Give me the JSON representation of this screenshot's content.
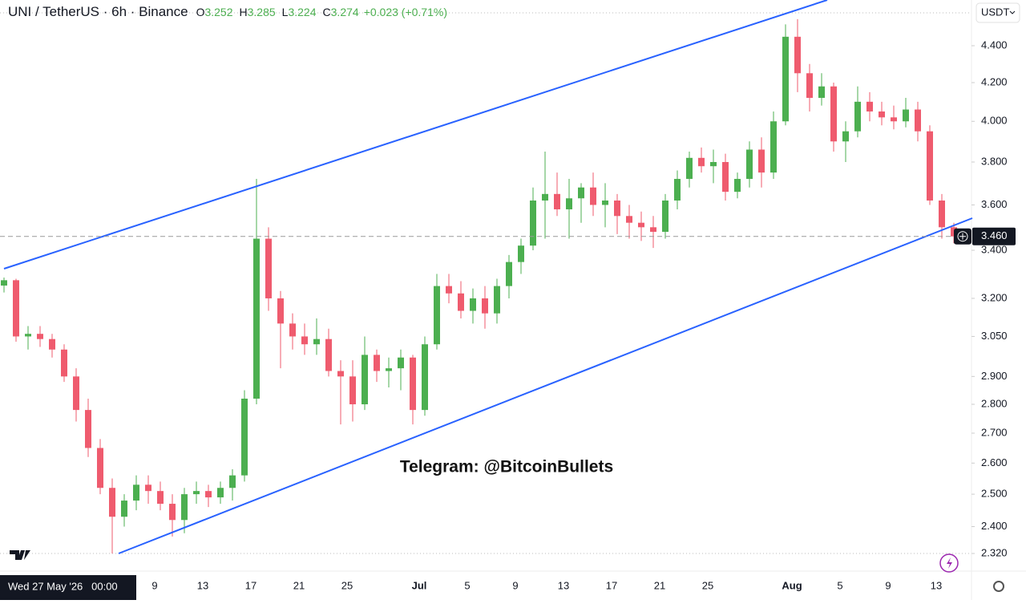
{
  "chart_data": {
    "type": "candlestick",
    "title": "UNI / TetherUS · 6h · Binance",
    "ohlc_legend": {
      "o_label": "O",
      "o": 3.252,
      "h_label": "H",
      "h": 3.285,
      "l_label": "L",
      "l": 3.224,
      "c_label": "C",
      "c": 3.274,
      "change": "+0.023 (+0.71%)"
    },
    "currency": "USDT",
    "annotation": "Telegram: @BitcoinBullets",
    "crosshair_label": "Wed 27 May '26   00:00",
    "last_price": {
      "value": 3.46,
      "label": "3.460"
    },
    "up_color": "#4caf50",
    "down_color": "#ef5b6e",
    "log_scale": true,
    "ylim": [
      2.269,
      4.661
    ],
    "yticks": [
      {
        "value": 4.4,
        "label": "4.400"
      },
      {
        "value": 4.2,
        "label": "4.200"
      },
      {
        "value": 4.0,
        "label": "4.000"
      },
      {
        "value": 3.8,
        "label": "3.800"
      },
      {
        "value": 3.6,
        "label": "3.600"
      },
      {
        "value": 3.4,
        "label": "3.400"
      },
      {
        "value": 3.2,
        "label": "3.200"
      },
      {
        "value": 3.05,
        "label": "3.050"
      },
      {
        "value": 2.9,
        "label": "2.900"
      },
      {
        "value": 2.8,
        "label": "2.800"
      },
      {
        "value": 2.7,
        "label": "2.700"
      },
      {
        "value": 2.6,
        "label": "2.600"
      },
      {
        "value": 2.5,
        "label": "2.500"
      },
      {
        "value": 2.4,
        "label": "2.400"
      },
      {
        "value": 2.32,
        "label": "2.320"
      }
    ],
    "categories": [
      null,
      null,
      null,
      null,
      null,
      null,
      null,
      null,
      null,
      null,
      null,
      null,
      null,
      "9",
      null,
      null,
      null,
      "13",
      null,
      null,
      null,
      "17",
      null,
      null,
      null,
      "21",
      null,
      null,
      null,
      "25",
      null,
      null,
      null,
      null,
      null,
      "Jul",
      null,
      null,
      null,
      "5",
      null,
      null,
      null,
      "9",
      null,
      null,
      null,
      "13",
      null,
      null,
      null,
      "17",
      null,
      null,
      null,
      "21",
      null,
      null,
      null,
      "25",
      null,
      null,
      null,
      null,
      null,
      null,
      "Aug",
      null,
      null,
      null,
      "5",
      null,
      null,
      null,
      "9",
      null,
      null,
      null,
      "13",
      null
    ],
    "open": [
      3.252,
      3.274,
      3.05,
      3.06,
      3.04,
      3.0,
      2.9,
      2.78,
      2.65,
      2.52,
      2.43,
      2.48,
      2.53,
      2.51,
      2.47,
      2.42,
      2.5,
      2.51,
      2.49,
      2.52,
      2.56,
      2.82,
      3.45,
      3.2,
      3.1,
      3.05,
      3.02,
      3.04,
      2.92,
      2.9,
      2.8,
      2.98,
      2.92,
      2.93,
      2.97,
      2.78,
      3.02,
      3.25,
      3.22,
      3.15,
      3.2,
      3.14,
      3.25,
      3.35,
      3.42,
      3.62,
      3.65,
      3.58,
      3.63,
      3.68,
      3.6,
      3.62,
      3.55,
      3.52,
      3.5,
      3.48,
      3.62,
      3.72,
      3.82,
      3.78,
      3.8,
      3.66,
      3.72,
      3.86,
      3.75,
      4.0,
      4.45,
      4.25,
      4.12,
      4.18,
      3.9,
      3.95,
      4.1,
      4.05,
      4.02,
      4.0,
      4.06,
      3.95,
      3.62,
      3.5
    ],
    "high": [
      3.285,
      3.28,
      3.09,
      3.09,
      3.06,
      3.02,
      2.93,
      2.82,
      2.68,
      2.55,
      2.5,
      2.56,
      2.56,
      2.54,
      2.5,
      2.52,
      2.54,
      2.53,
      2.54,
      2.58,
      2.85,
      3.72,
      3.5,
      3.23,
      3.14,
      3.1,
      3.12,
      3.08,
      2.96,
      2.96,
      3.05,
      3.0,
      2.97,
      3.0,
      2.98,
      3.05,
      3.3,
      3.3,
      3.27,
      3.24,
      3.25,
      3.28,
      3.38,
      3.45,
      3.68,
      3.85,
      3.75,
      3.72,
      3.7,
      3.75,
      3.7,
      3.65,
      3.6,
      3.57,
      3.55,
      3.65,
      3.76,
      3.85,
      3.87,
      3.86,
      3.84,
      3.75,
      3.9,
      3.92,
      4.05,
      4.52,
      4.55,
      4.3,
      4.25,
      4.2,
      4.0,
      4.18,
      4.15,
      4.1,
      4.08,
      4.12,
      4.1,
      3.98,
      3.65,
      3.52
    ],
    "low": [
      3.224,
      3.03,
      3.0,
      3.01,
      2.97,
      2.88,
      2.74,
      2.62,
      2.5,
      2.32,
      2.4,
      2.45,
      2.47,
      2.45,
      2.37,
      2.38,
      2.47,
      2.46,
      2.47,
      2.48,
      2.54,
      2.8,
      3.15,
      2.93,
      3.0,
      2.98,
      2.98,
      2.9,
      2.73,
      2.74,
      2.78,
      2.88,
      2.86,
      2.85,
      2.73,
      2.76,
      3.0,
      3.18,
      3.12,
      3.1,
      3.08,
      3.1,
      3.2,
      3.3,
      3.4,
      3.45,
      3.55,
      3.45,
      3.52,
      3.55,
      3.5,
      3.47,
      3.45,
      3.44,
      3.41,
      3.45,
      3.58,
      3.68,
      3.75,
      3.7,
      3.62,
      3.63,
      3.68,
      3.68,
      3.72,
      3.98,
      4.15,
      4.05,
      4.08,
      3.85,
      3.8,
      3.92,
      4.0,
      3.98,
      3.96,
      3.97,
      3.9,
      3.6,
      3.45,
      3.43
    ],
    "close": [
      3.274,
      3.05,
      3.06,
      3.04,
      3.0,
      2.9,
      2.78,
      2.65,
      2.52,
      2.43,
      2.48,
      2.53,
      2.51,
      2.47,
      2.42,
      2.5,
      2.51,
      2.49,
      2.52,
      2.56,
      2.82,
      3.45,
      3.2,
      3.1,
      3.05,
      3.02,
      3.04,
      2.92,
      2.9,
      2.8,
      2.98,
      2.92,
      2.93,
      2.97,
      2.78,
      3.02,
      3.25,
      3.22,
      3.15,
      3.2,
      3.14,
      3.25,
      3.35,
      3.42,
      3.62,
      3.65,
      3.58,
      3.63,
      3.68,
      3.6,
      3.62,
      3.55,
      3.52,
      3.5,
      3.48,
      3.62,
      3.72,
      3.82,
      3.78,
      3.8,
      3.66,
      3.72,
      3.86,
      3.75,
      4.0,
      4.45,
      4.25,
      4.12,
      4.18,
      3.9,
      3.95,
      4.1,
      4.05,
      4.02,
      4.0,
      4.06,
      3.95,
      3.62,
      3.5,
      3.46
    ]
  }
}
